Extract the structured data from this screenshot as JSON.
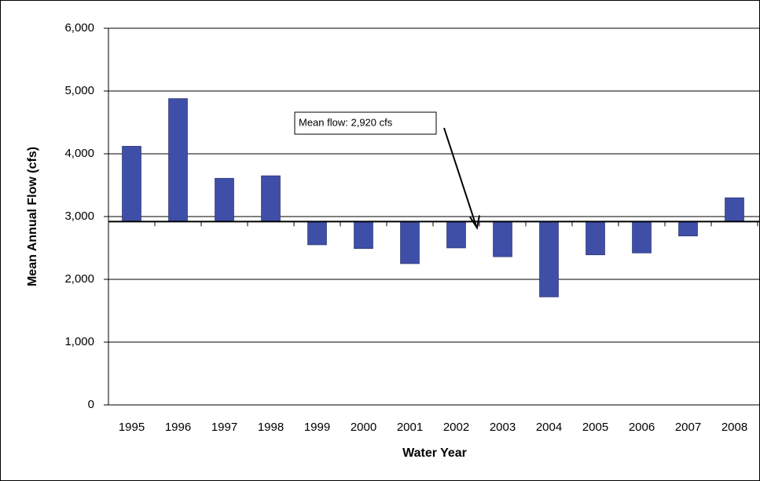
{
  "chart_data": {
    "type": "bar",
    "xlabel": "Water Year",
    "ylabel": "Mean Annual Flow (cfs)",
    "categories": [
      "1995",
      "1996",
      "1997",
      "1998",
      "1999",
      "2000",
      "2001",
      "2002",
      "2003",
      "2004",
      "2005",
      "2006",
      "2007",
      "2008"
    ],
    "values": [
      4120,
      4880,
      3610,
      3650,
      2550,
      2490,
      2250,
      2500,
      2360,
      1720,
      2390,
      2420,
      2690,
      3300
    ],
    "color": "#3f4fa8",
    "baseline": 2920,
    "annotation": "Mean flow: 2,920 cfs",
    "ylim": [
      0,
      6000
    ],
    "yticks": [
      0,
      {
        "value": 1000,
        "label": "1,000"
      },
      {
        "value": 2000,
        "label": "2,000"
      },
      {
        "value": 3000,
        "label": "3,000"
      },
      {
        "value": 4000,
        "label": "4,000"
      },
      {
        "value": 5000,
        "label": "5,000"
      },
      {
        "value": 6000,
        "label": "6,000"
      }
    ],
    "grid": true
  }
}
